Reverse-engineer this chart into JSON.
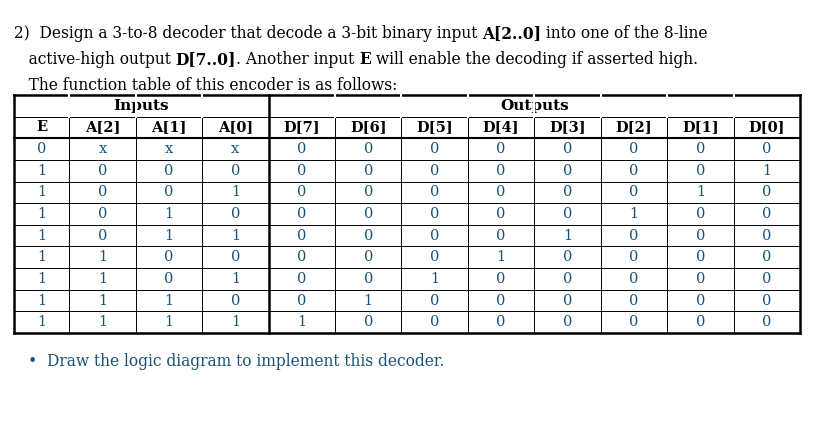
{
  "inputs_label": "Inputs",
  "outputs_label": "Outputs",
  "col_headers": [
    "E",
    "A[2]",
    "A[1]",
    "A[0]",
    "D[7]",
    "D[6]",
    "D[5]",
    "D[4]",
    "D[3]",
    "D[2]",
    "D[1]",
    "D[0]"
  ],
  "table_data": [
    [
      "0",
      "x",
      "x",
      "x",
      "0",
      "0",
      "0",
      "0",
      "0",
      "0",
      "0",
      "0"
    ],
    [
      "1",
      "0",
      "0",
      "0",
      "0",
      "0",
      "0",
      "0",
      "0",
      "0",
      "0",
      "1"
    ],
    [
      "1",
      "0",
      "0",
      "1",
      "0",
      "0",
      "0",
      "0",
      "0",
      "0",
      "1",
      "0"
    ],
    [
      "1",
      "0",
      "1",
      "0",
      "0",
      "0",
      "0",
      "0",
      "0",
      "1",
      "0",
      "0"
    ],
    [
      "1",
      "0",
      "1",
      "1",
      "0",
      "0",
      "0",
      "0",
      "1",
      "0",
      "0",
      "0"
    ],
    [
      "1",
      "1",
      "0",
      "0",
      "0",
      "0",
      "0",
      "1",
      "0",
      "0",
      "0",
      "0"
    ],
    [
      "1",
      "1",
      "0",
      "1",
      "0",
      "0",
      "1",
      "0",
      "0",
      "0",
      "0",
      "0"
    ],
    [
      "1",
      "1",
      "1",
      "0",
      "0",
      "1",
      "0",
      "0",
      "0",
      "0",
      "0",
      "0"
    ],
    [
      "1",
      "1",
      "1",
      "1",
      "1",
      "0",
      "0",
      "0",
      "0",
      "0",
      "0",
      "0"
    ]
  ],
  "bullet_text": "Draw the logic diagram to implement this decoder.",
  "bg_color": "#ffffff",
  "table_text_color": "#1a5276",
  "title_line1_plain": "2)  Design a 3-to-8 decoder that decode a 3-bit binary input ",
  "title_line1_bold": "A[2..0]",
  "title_line1_end": " into one of the 8-line",
  "title_line2_start": "   active-high output ",
  "title_line2_bold1": "D[7..0]",
  "title_line2_mid": ". Another input ",
  "title_line2_bold2": "E",
  "title_line2_end": " will enable the decoding if asserted high.",
  "title_line3": "   The function table of this encoder is as follows:",
  "font_size": 11.2,
  "table_font_size": 10.5
}
